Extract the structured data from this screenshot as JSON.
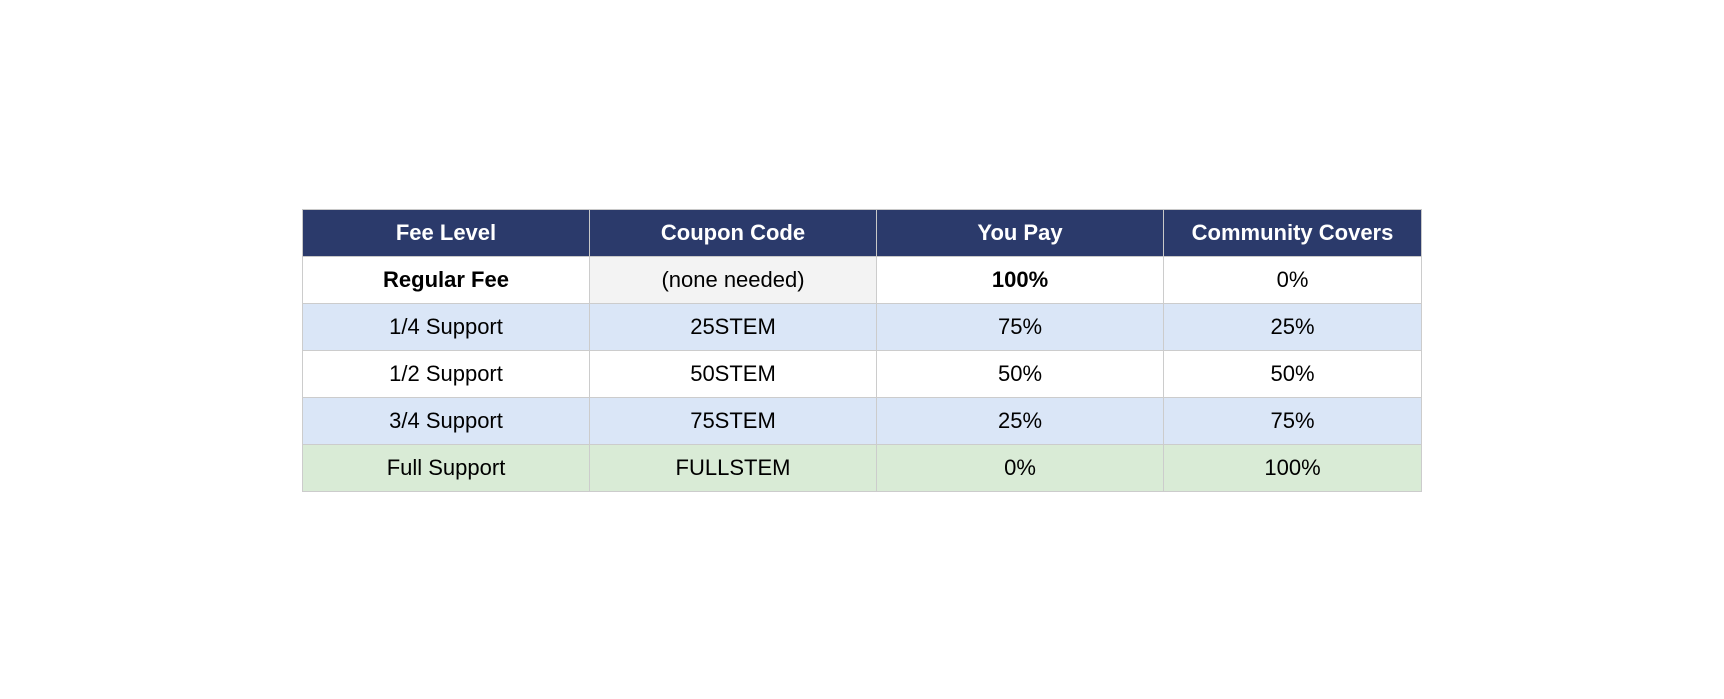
{
  "table": {
    "header": [
      "Fee Level",
      "Coupon Code",
      "You Pay",
      "Community Covers"
    ],
    "rows": [
      [
        "Regular Fee",
        "(none needed)",
        "100%",
        "0%"
      ],
      [
        "1/4 Support",
        "25STEM",
        "75%",
        "25%"
      ],
      [
        "1/2 Support",
        "50STEM",
        "50%",
        "50%"
      ],
      [
        "3/4 Support",
        "75STEM",
        "25%",
        "75%"
      ],
      [
        "Full Support",
        "FULLSTEM",
        "0%",
        "100%"
      ]
    ]
  }
}
